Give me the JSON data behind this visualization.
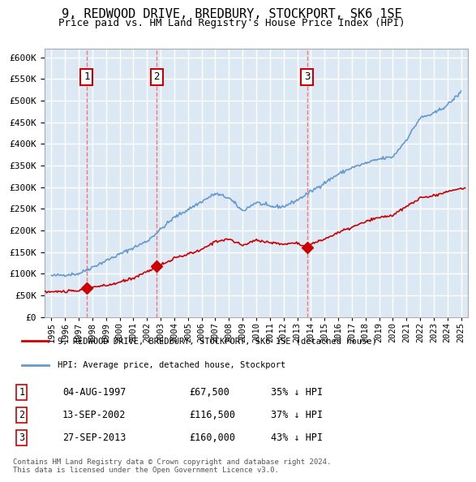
{
  "title": "9, REDWOOD DRIVE, BREDBURY, STOCKPORT, SK6 1SE",
  "subtitle": "Price paid vs. HM Land Registry's House Price Index (HPI)",
  "ylim": [
    0,
    620000
  ],
  "yticks": [
    0,
    50000,
    100000,
    150000,
    200000,
    250000,
    300000,
    350000,
    400000,
    450000,
    500000,
    550000,
    600000
  ],
  "xmin": 1994.5,
  "xmax": 2025.5,
  "sale_points": [
    {
      "year": 1997.58,
      "price": 67500,
      "label": "1",
      "date": "04-AUG-1997",
      "hpi_pct": "35% ↓ HPI"
    },
    {
      "year": 2002.7,
      "price": 116500,
      "label": "2",
      "date": "13-SEP-2002",
      "hpi_pct": "37% ↓ HPI"
    },
    {
      "year": 2013.73,
      "price": 160000,
      "label": "3",
      "date": "27-SEP-2013",
      "hpi_pct": "43% ↓ HPI"
    }
  ],
  "red_line_color": "#cc0000",
  "blue_line_color": "#6699cc",
  "dashed_line_color": "#ff6666",
  "background_color": "#dce9f5",
  "grid_color": "#ffffff",
  "legend_line1": "9, REDWOOD DRIVE, BREDBURY, STOCKPORT, SK6 1SE (detached house)",
  "legend_line2": "HPI: Average price, detached house, Stockport",
  "footer": "Contains HM Land Registry data © Crown copyright and database right 2024.\nThis data is licensed under the Open Government Licence v3.0.",
  "table_rows": [
    [
      "1",
      "04-AUG-1997",
      "£67,500",
      "35% ↓ HPI"
    ],
    [
      "2",
      "13-SEP-2002",
      "£116,500",
      "37% ↓ HPI"
    ],
    [
      "3",
      "27-SEP-2013",
      "£160,000",
      "43% ↓ HPI"
    ]
  ]
}
